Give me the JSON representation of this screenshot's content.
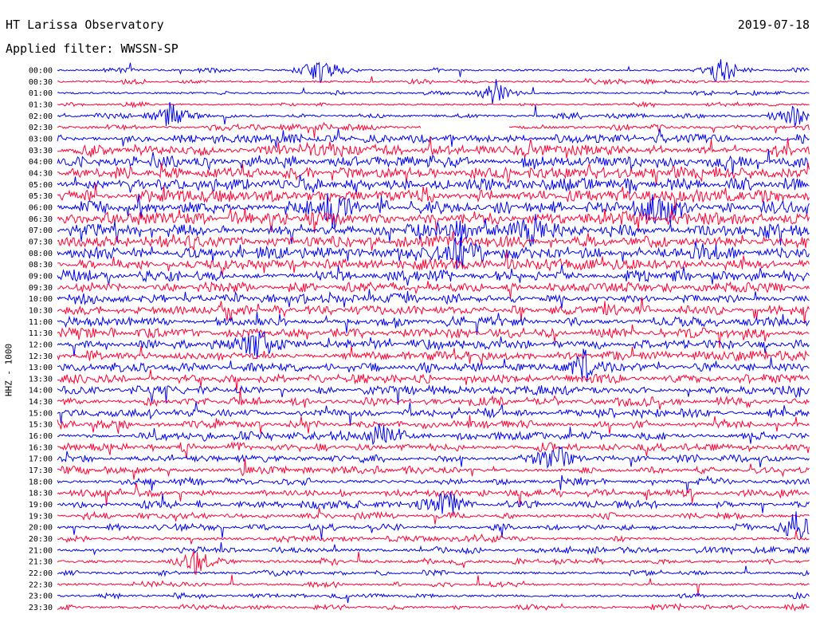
{
  "header": {
    "title": "HT Larissa Observatory",
    "filter": "Applied filter: WWSSN-SP",
    "date": "2019-07-18"
  },
  "chart_data": {
    "type": "line",
    "title": "HT Larissa Observatory",
    "subtitle": "Applied filter: WWSSN-SP",
    "ylabel": "HHZ - 1000",
    "xlabel": "",
    "grid": false,
    "colors": [
      "#0000ee",
      "#ff0033"
    ],
    "categories": [
      "00:00",
      "00:30",
      "01:00",
      "01:30",
      "02:00",
      "02:30",
      "03:00",
      "03:30",
      "04:00",
      "04:30",
      "05:00",
      "05:30",
      "06:00",
      "06:30",
      "07:00",
      "07:30",
      "08:00",
      "08:30",
      "09:00",
      "09:30",
      "10:00",
      "10:30",
      "11:00",
      "11:30",
      "12:00",
      "12:30",
      "13:00",
      "13:30",
      "14:00",
      "14:30",
      "15:00",
      "15:30",
      "16:00",
      "16:30",
      "17:00",
      "17:30",
      "18:00",
      "18:30",
      "19:00",
      "19:30",
      "20:00",
      "20:30",
      "21:00",
      "21:30",
      "22:00",
      "22:30",
      "23:00",
      "23:30"
    ],
    "activity": [
      1,
      1,
      1,
      1,
      2,
      3,
      5,
      7,
      8,
      9,
      9,
      9,
      9,
      9,
      8,
      8,
      8,
      7,
      7,
      6,
      6,
      6,
      6,
      6,
      6,
      6,
      6,
      5,
      5,
      5,
      5,
      5,
      5,
      5,
      4,
      4,
      4,
      4,
      4,
      3,
      3,
      3,
      3,
      3,
      2,
      2,
      2,
      2
    ],
    "events": [
      {
        "row": "00:00",
        "minute": 10.5,
        "amp": 5
      },
      {
        "row": "00:00",
        "minute": 26.5,
        "amp": 5
      },
      {
        "row": "01:00",
        "minute": 17.5,
        "amp": 4
      },
      {
        "row": "02:00",
        "minute": 4.5,
        "amp": 4
      },
      {
        "row": "02:00",
        "minute": 29.5,
        "amp": 4
      },
      {
        "row": "06:00",
        "minute": 11,
        "amp": 5
      },
      {
        "row": "06:00",
        "minute": 24,
        "amp": 5
      },
      {
        "row": "07:00",
        "minute": 16,
        "amp": 4
      },
      {
        "row": "07:00",
        "minute": 19,
        "amp": 4
      },
      {
        "row": "08:00",
        "minute": 16,
        "amp": 4
      },
      {
        "row": "12:00",
        "minute": 8,
        "amp": 4
      },
      {
        "row": "13:00",
        "minute": 21,
        "amp": 4
      },
      {
        "row": "16:00",
        "minute": 13,
        "amp": 4
      },
      {
        "row": "17:00",
        "minute": 20,
        "amp": 4
      },
      {
        "row": "19:00",
        "minute": 15.5,
        "amp": 5
      },
      {
        "row": "20:00",
        "minute": 29.5,
        "amp": 5
      },
      {
        "row": "21:30",
        "minute": 5.5,
        "amp": 4
      }
    ],
    "gaps": [
      {
        "row": "02:30",
        "start_minute": 14.5,
        "end_minute": 18
      }
    ]
  }
}
